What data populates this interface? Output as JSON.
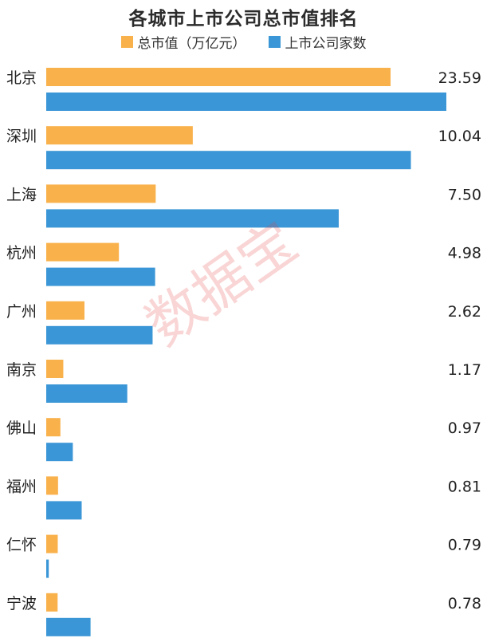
{
  "chart_data": {
    "type": "bar",
    "orientation": "horizontal",
    "title": "各城市上市公司总市值排名",
    "categories": [
      "北京",
      "深圳",
      "上海",
      "杭州",
      "广州",
      "南京",
      "佛山",
      "福州",
      "仁怀",
      "宁波"
    ],
    "series": [
      {
        "name": "总市值（万亿元）",
        "color": "#F9B14B",
        "values": [
          23.59,
          10.04,
          7.5,
          4.98,
          2.62,
          1.17,
          0.97,
          0.81,
          0.79,
          0.78
        ],
        "labels": [
          "23.59",
          "10.04",
          "7.50",
          "4.98",
          "2.62",
          "1.17",
          "0.97",
          "0.81",
          "0.79",
          "0.78"
        ]
      },
      {
        "name": "上市公司家数",
        "color": "#3A96D6",
        "values": [
          316,
          288,
          231,
          86,
          84,
          64,
          21,
          28,
          2,
          35
        ]
      }
    ],
    "legend_position": "top-center",
    "grid": false
  },
  "legend": {
    "items": [
      {
        "label": "总市值（万亿元）",
        "color": "#F9B14B"
      },
      {
        "label": "上市公司家数",
        "color": "#3A96D6"
      }
    ]
  },
  "watermark": "数据宝"
}
